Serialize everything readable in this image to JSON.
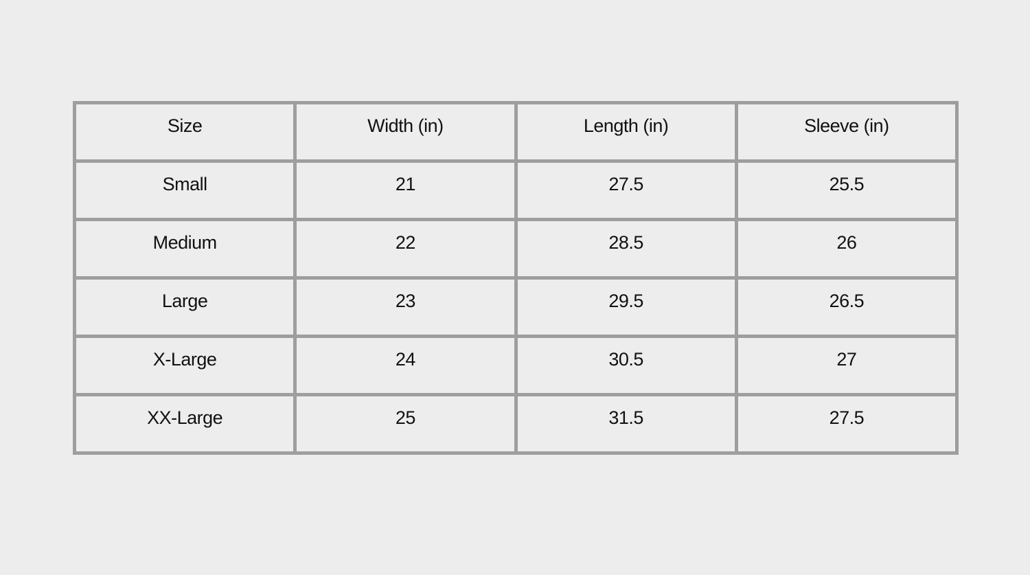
{
  "table": {
    "header": [
      "Size",
      "Width (in)",
      "Length (in)",
      "Sleeve (in)"
    ],
    "rows": [
      [
        "Small",
        21,
        27.5,
        25.5
      ],
      [
        "Medium",
        22,
        28.5,
        26
      ],
      [
        "Large",
        23,
        29.5,
        26.5
      ],
      [
        "X-Large",
        24,
        30.5,
        27
      ],
      [
        "XX-Large",
        25,
        31.5,
        27.5
      ]
    ]
  }
}
